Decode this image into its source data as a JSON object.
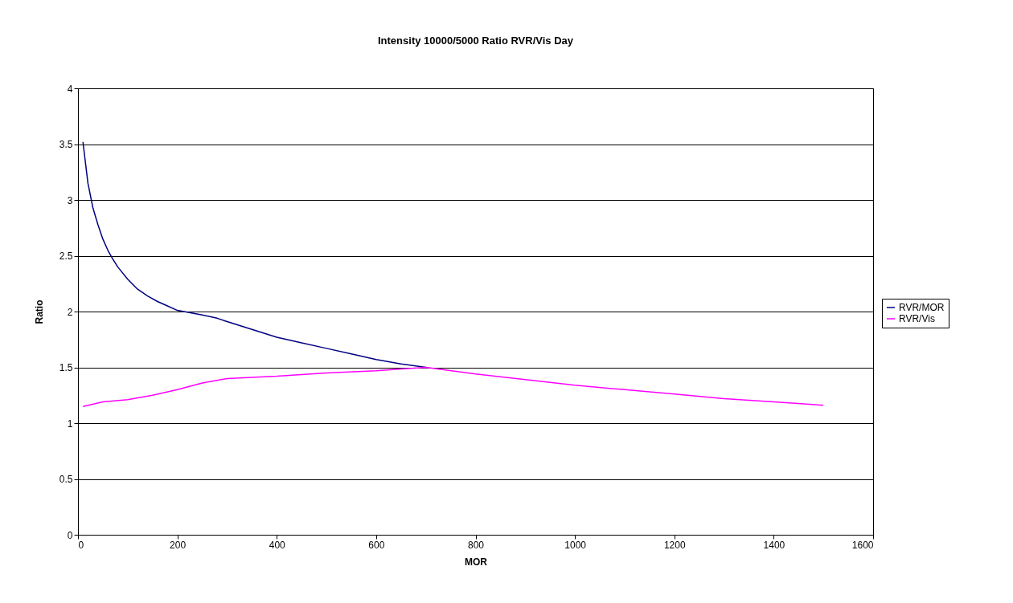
{
  "chart_data": {
    "type": "line",
    "title": "Intensity 10000/5000 Ratio RVR/Vis Day",
    "xlabel": "MOR",
    "ylabel": "Ratio",
    "series": [
      {
        "name": "RVR/MOR",
        "color": "#000080",
        "x": [
          10,
          20,
          30,
          40,
          50,
          60,
          70,
          80,
          100,
          120,
          140,
          160,
          180,
          200,
          250,
          280,
          300,
          350,
          400,
          450,
          500,
          550,
          600,
          650,
          700
        ],
        "values": [
          3.52,
          3.15,
          2.93,
          2.78,
          2.65,
          2.55,
          2.47,
          2.4,
          2.29,
          2.2,
          2.14,
          2.09,
          2.05,
          2.01,
          1.97,
          1.94,
          1.91,
          1.84,
          1.77,
          1.72,
          1.67,
          1.62,
          1.57,
          1.53,
          1.5
        ]
      },
      {
        "name": "RVR/Vis",
        "color": "#ff00ff",
        "x": [
          10,
          50,
          100,
          150,
          200,
          250,
          300,
          400,
          500,
          600,
          700,
          800,
          900,
          1000,
          1100,
          1200,
          1300,
          1400,
          1500
        ],
        "values": [
          1.15,
          1.19,
          1.21,
          1.25,
          1.3,
          1.36,
          1.4,
          1.42,
          1.45,
          1.47,
          1.5,
          1.44,
          1.39,
          1.34,
          1.3,
          1.26,
          1.22,
          1.19,
          1.16
        ]
      }
    ],
    "xlim": [
      0,
      1600
    ],
    "xticks": [
      0,
      200,
      400,
      600,
      800,
      1000,
      1200,
      1400,
      1600
    ],
    "ylim": [
      0,
      4
    ],
    "yticks": [
      0,
      0.5,
      1,
      1.5,
      2,
      2.5,
      3,
      3.5,
      4
    ],
    "grid": "y",
    "legend": "right",
    "marker": "none",
    "line_style": "solid"
  }
}
